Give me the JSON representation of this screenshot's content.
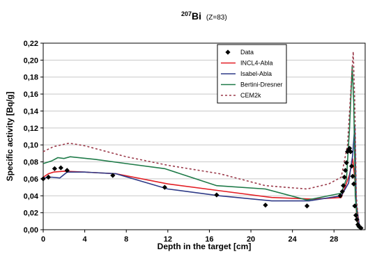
{
  "chart_data": {
    "type": "line",
    "title": {
      "mass_number": "207",
      "element": "Bi",
      "subtitle": "(Z=83)"
    },
    "xlabel": "Depth in the target [cm]",
    "ylabel": "Specific activity [Bq/g]",
    "xlim": [
      0,
      31
    ],
    "ylim": [
      0,
      0.22
    ],
    "xticks": [
      "0",
      "4",
      "8",
      "12",
      "16",
      "20",
      "24",
      "28"
    ],
    "xtick_values": [
      0,
      4,
      8,
      12,
      16,
      20,
      24,
      28
    ],
    "yticks": [
      "0,00",
      "0,02",
      "0,04",
      "0,06",
      "0,08",
      "0,10",
      "0,12",
      "0,14",
      "0,16",
      "0,18",
      "0,20",
      "0,22"
    ],
    "ytick_values": [
      0,
      0.02,
      0.04,
      0.06,
      0.08,
      0.1,
      0.12,
      0.14,
      0.16,
      0.18,
      0.2,
      0.22
    ],
    "grid": {
      "horizontal": true,
      "vertical": false
    },
    "legend_position": "top-right",
    "data_points": {
      "name": "Data",
      "color": "#000000",
      "points": [
        [
          0.0,
          0.06
        ],
        [
          0.5,
          0.062
        ],
        [
          1.1,
          0.072
        ],
        [
          1.7,
          0.073
        ],
        [
          2.3,
          0.07
        ],
        [
          6.7,
          0.064
        ],
        [
          11.7,
          0.05
        ],
        [
          16.7,
          0.041
        ],
        [
          21.4,
          0.029
        ],
        [
          25.4,
          0.028
        ],
        [
          28.6,
          0.04
        ],
        [
          28.8,
          0.045
        ],
        [
          28.9,
          0.052
        ],
        [
          29.0,
          0.062
        ],
        [
          29.1,
          0.07
        ],
        [
          29.2,
          0.079
        ],
        [
          29.3,
          0.092
        ],
        [
          29.4,
          0.094
        ],
        [
          29.5,
          0.096
        ],
        [
          29.6,
          0.092
        ],
        [
          29.7,
          0.075
        ],
        [
          29.8,
          0.063
        ],
        [
          29.9,
          0.054
        ],
        [
          30.0,
          0.028
        ],
        [
          30.1,
          0.017
        ],
        [
          30.2,
          0.012
        ],
        [
          30.3,
          0.006
        ],
        [
          30.4,
          0.004
        ],
        [
          30.5,
          0.003
        ],
        [
          30.6,
          0.002
        ]
      ]
    },
    "series": [
      {
        "name": "INCL4-Abla",
        "color": "#e31e24",
        "dash": "",
        "points": [
          [
            0,
            0.062
          ],
          [
            0.5,
            0.066
          ],
          [
            1,
            0.068
          ],
          [
            2,
            0.069
          ],
          [
            4,
            0.068
          ],
          [
            7,
            0.066
          ],
          [
            12,
            0.054
          ],
          [
            17,
            0.046
          ],
          [
            22,
            0.038
          ],
          [
            26,
            0.036
          ],
          [
            28.7,
            0.038
          ],
          [
            29.5,
            0.065
          ],
          [
            29.8,
            0.084
          ],
          [
            30.0,
            0.06
          ],
          [
            30.2,
            0.01
          ],
          [
            30.5,
            0.001
          ]
        ]
      },
      {
        "name": "Isabel-Abla",
        "color": "#2e3a87",
        "dash": "",
        "points": [
          [
            0,
            0.061
          ],
          [
            0.8,
            0.062
          ],
          [
            1.6,
            0.061
          ],
          [
            2.3,
            0.068
          ],
          [
            4,
            0.068
          ],
          [
            7,
            0.066
          ],
          [
            12,
            0.048
          ],
          [
            17,
            0.04
          ],
          [
            22,
            0.034
          ],
          [
            25.6,
            0.034
          ],
          [
            28.7,
            0.04
          ],
          [
            29.4,
            0.055
          ],
          [
            29.8,
            0.088
          ],
          [
            30.0,
            0.123
          ],
          [
            30.15,
            0.03
          ],
          [
            30.5,
            0.001
          ]
        ]
      },
      {
        "name": "Bertini-Dresner",
        "color": "#1e7a48",
        "dash": "",
        "points": [
          [
            0,
            0.078
          ],
          [
            0.8,
            0.081
          ],
          [
            1.4,
            0.085
          ],
          [
            2.0,
            0.084
          ],
          [
            2.6,
            0.086
          ],
          [
            5,
            0.083
          ],
          [
            8,
            0.078
          ],
          [
            11.7,
            0.072
          ],
          [
            16.7,
            0.052
          ],
          [
            21.4,
            0.048
          ],
          [
            25.4,
            0.035
          ],
          [
            28.7,
            0.043
          ],
          [
            29.2,
            0.06
          ],
          [
            29.5,
            0.12
          ],
          [
            29.75,
            0.193
          ],
          [
            29.9,
            0.15
          ],
          [
            30.05,
            0.04
          ],
          [
            30.3,
            0.002
          ]
        ]
      },
      {
        "name": "CEM2k",
        "color": "#9b3a4a",
        "dash": "3,3",
        "points": [
          [
            0,
            0.092
          ],
          [
            1,
            0.098
          ],
          [
            2.5,
            0.102
          ],
          [
            4,
            0.099
          ],
          [
            8,
            0.086
          ],
          [
            12,
            0.076
          ],
          [
            17,
            0.066
          ],
          [
            21.4,
            0.052
          ],
          [
            25.4,
            0.048
          ],
          [
            27.5,
            0.054
          ],
          [
            28.7,
            0.062
          ],
          [
            29.3,
            0.1
          ],
          [
            29.6,
            0.16
          ],
          [
            29.85,
            0.21
          ],
          [
            30.0,
            0.15
          ],
          [
            30.15,
            0.04
          ],
          [
            30.4,
            0.002
          ]
        ]
      }
    ]
  }
}
